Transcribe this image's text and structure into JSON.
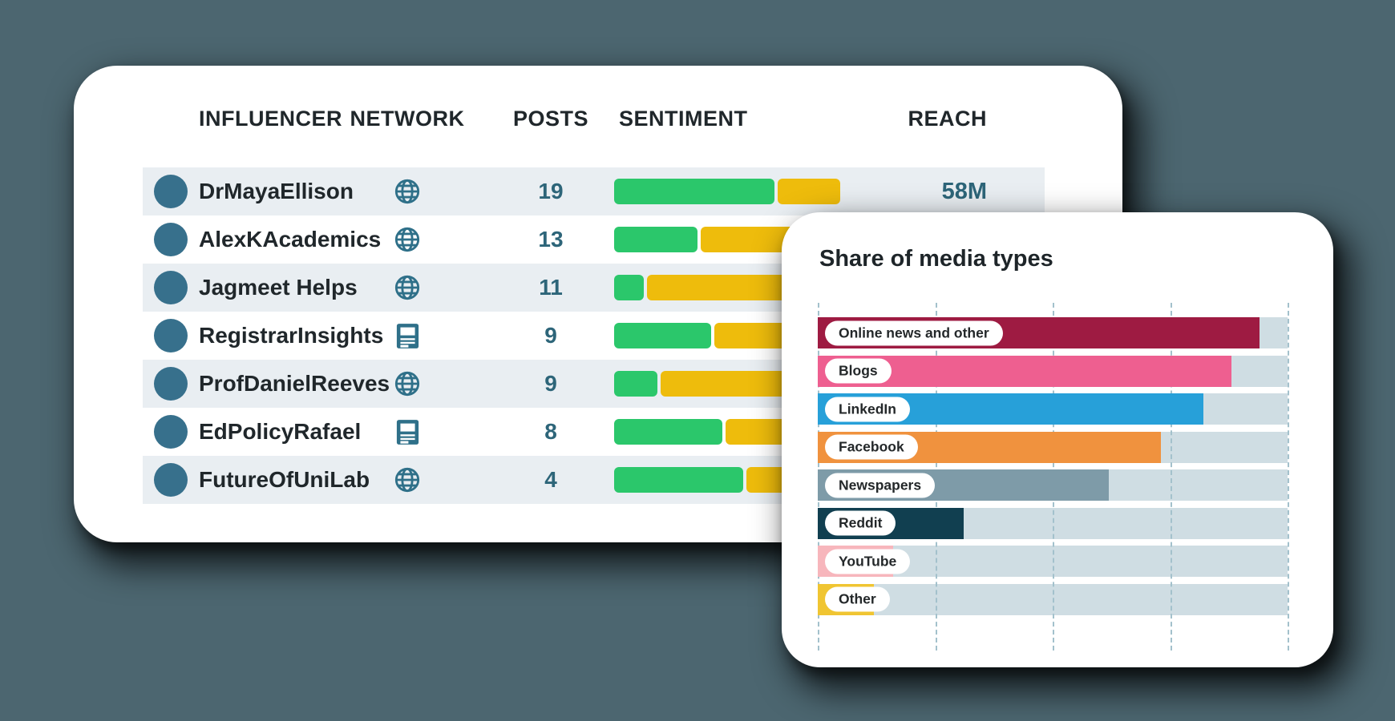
{
  "background_color": "#4c6670",
  "table_card": {
    "headers": {
      "influencer": "INFLUENCER",
      "network": "NETWORK",
      "posts": "POSTS",
      "sentiment": "SENTIMENT",
      "reach": "REACH"
    },
    "rows": [
      {
        "name": "DrMayaEllison",
        "network": "globe",
        "posts": "19",
        "sentiment_positive_pct": 71,
        "sentiment_neutral_pct": 29,
        "reach": "58M"
      },
      {
        "name": "AlexKAcademics",
        "network": "globe",
        "posts": "13",
        "sentiment_positive_pct": 37,
        "sentiment_neutral_pct": 63,
        "reach": ""
      },
      {
        "name": "Jagmeet Helps",
        "network": "globe",
        "posts": "11",
        "sentiment_positive_pct": 13,
        "sentiment_neutral_pct": 87,
        "reach": ""
      },
      {
        "name": "RegistrarInsights",
        "network": "newspaper",
        "posts": "9",
        "sentiment_positive_pct": 43,
        "sentiment_neutral_pct": 57,
        "reach": ""
      },
      {
        "name": "ProfDanielReeves",
        "network": "globe",
        "posts": "9",
        "sentiment_positive_pct": 19,
        "sentiment_neutral_pct": 81,
        "reach": ""
      },
      {
        "name": "EdPolicyRafael",
        "network": "newspaper",
        "posts": "8",
        "sentiment_positive_pct": 48,
        "sentiment_neutral_pct": 52,
        "reach": ""
      },
      {
        "name": "FutureOfUniLab",
        "network": "globe",
        "posts": "4",
        "sentiment_positive_pct": 57,
        "sentiment_neutral_pct": 43,
        "reach": ""
      }
    ],
    "colors": {
      "sentiment_positive": "#2bc76b",
      "sentiment_neutral": "#eebc0c",
      "row_stripe": "#e9eef2",
      "accent_text": "#2d6579",
      "avatar": "#37708c",
      "network_icon": "#2f7089"
    }
  },
  "chart_data": {
    "type": "bar",
    "orientation": "horizontal",
    "title": "Share of media types",
    "categories": [
      "Online news and other",
      "Blogs",
      "LinkedIn",
      "Facebook",
      "Newspapers",
      "Reddit",
      "YouTube",
      "Other"
    ],
    "values": [
      94,
      88,
      82,
      73,
      62,
      31,
      16,
      12
    ],
    "value_unit": "percent of full track width (estimated from bar lengths)",
    "xlim": [
      0,
      100
    ],
    "bar_colors": [
      "#9e1b42",
      "#ee5f90",
      "#27a0d9",
      "#f0923e",
      "#7e9ba8",
      "#113f50",
      "#f7b6bc",
      "#f0c532"
    ],
    "track_color": "#cfdde3",
    "gridline_color": "#a3c1cc",
    "grid": "dashed-vertical",
    "legend": "none",
    "labels_position": "white pill inside bar start"
  }
}
